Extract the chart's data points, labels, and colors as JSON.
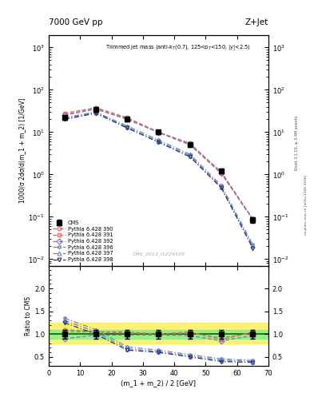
{
  "title_top": "7000 GeV pp",
  "title_right": "Z+Jet",
  "annotation": "Trimmed jet mass (anti-k$_T$(0.7), 125<p$_T$<150, |y|<2.5)",
  "analysis_id": "CMS_2013_I1224539",
  "ylabel_main": "1000/σ 2dσ/d(m_1 + m_2) [1/GeV]",
  "ylabel_ratio": "Ratio to CMS",
  "xlabel": "(m_1 + m_2) / 2 [GeV]",
  "right_label": "Rivet 3.1.10, ≥ 3.4M events",
  "right_label2": "mcplots.cern.ch [arXiv:1306.3436]",
  "x_data": [
    5,
    15,
    25,
    35,
    45,
    55,
    65
  ],
  "cms_y": [
    22,
    35,
    20,
    10,
    5,
    1.2,
    0.085
  ],
  "cms_yerr": [
    2.5,
    3.5,
    2.0,
    1.0,
    0.5,
    0.15,
    0.012
  ],
  "pythia_390_y": [
    28,
    38,
    22,
    10,
    5.5,
    1.1,
    0.09
  ],
  "pythia_391_y": [
    26,
    36,
    21,
    10,
    5.2,
    1.15,
    0.088
  ],
  "pythia_392_y": [
    25,
    35,
    20,
    9.8,
    5.0,
    1.05,
    0.086
  ],
  "pythia_396_y": [
    22,
    30,
    14,
    6.5,
    3.0,
    0.55,
    0.022
  ],
  "pythia_397_y": [
    21,
    29,
    13,
    6.0,
    2.8,
    0.5,
    0.02
  ],
  "pythia_398_y": [
    20,
    28,
    12.5,
    5.8,
    2.6,
    0.48,
    0.018
  ],
  "ratio_390_y": [
    1.1,
    1.05,
    1.05,
    1.0,
    1.05,
    0.88,
    1.05
  ],
  "ratio_391_y": [
    1.05,
    1.05,
    1.02,
    1.0,
    1.02,
    0.92,
    1.02
  ],
  "ratio_392_y": [
    0.9,
    0.98,
    0.98,
    0.98,
    0.97,
    0.85,
    0.97
  ],
  "ratio_396_y": [
    1.35,
    1.1,
    0.72,
    0.65,
    0.55,
    0.46,
    0.42
  ],
  "ratio_397_y": [
    1.3,
    1.05,
    0.68,
    0.62,
    0.52,
    0.43,
    0.4
  ],
  "ratio_398_y": [
    1.25,
    1.0,
    0.65,
    0.6,
    0.5,
    0.4,
    0.38
  ],
  "color_390": "#c87070",
  "color_391": "#c87070",
  "color_392": "#8870b8",
  "color_396": "#6888c0",
  "color_397": "#6888c0",
  "color_398": "#303070",
  "color_cms": "#000000",
  "ylim_main": [
    0.007,
    2000
  ],
  "ylim_ratio": [
    0.3,
    2.5
  ],
  "xlim": [
    0,
    70
  ],
  "band_yellow_ylim": [
    0.8,
    1.25
  ],
  "band_green_ylim": [
    0.9,
    1.1
  ],
  "band1_xmax": 55,
  "band2_xmin": 55,
  "band2_xmax": 70
}
